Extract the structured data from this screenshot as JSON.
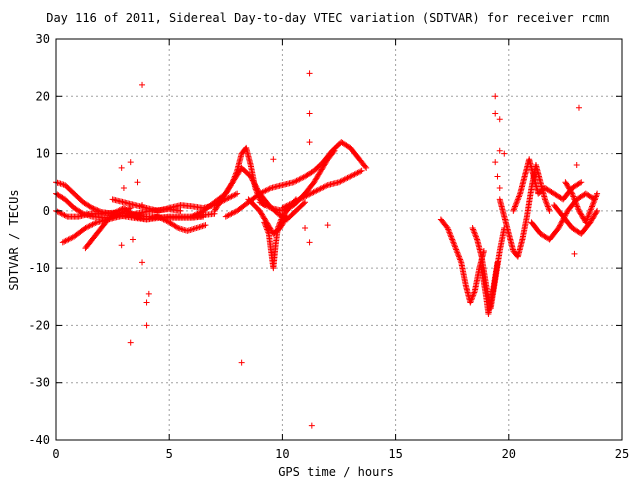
{
  "chart_data": {
    "type": "scatter",
    "title": "Day 116 of 2011, Sidereal Day-to-day VTEC variation (SDTVAR) for receiver rcmn",
    "xlabel": "GPS time / hours",
    "ylabel": "SDTVAR / TECUs",
    "xlim": [
      0,
      25
    ],
    "ylim": [
      -40,
      30
    ],
    "xticks": [
      "0",
      "5",
      "10",
      "15",
      "20",
      "25"
    ],
    "yticks": [
      "30",
      "20",
      "10",
      "0",
      "-10",
      "-20",
      "-30",
      "-40"
    ],
    "grid": true,
    "marker": "plus",
    "color": "#ff0000",
    "series": [
      {
        "tracks": [
          [
            [
              0.0,
              5.0
            ],
            [
              0.4,
              4.5
            ],
            [
              0.8,
              3.0
            ],
            [
              1.2,
              1.5
            ],
            [
              1.6,
              0.5
            ],
            [
              2.0,
              -0.2
            ],
            [
              2.5,
              -0.5
            ],
            [
              3.0,
              0.5
            ],
            [
              3.5,
              -1.0
            ],
            [
              4.0,
              -1.5
            ],
            [
              4.5,
              -1.0
            ]
          ],
          [
            [
              0.0,
              3.0
            ],
            [
              0.4,
              2.0
            ],
            [
              0.8,
              0.5
            ],
            [
              1.2,
              -0.5
            ],
            [
              1.6,
              -1.0
            ],
            [
              2.2,
              -1.2
            ],
            [
              2.8,
              -0.8
            ],
            [
              3.4,
              -1.2
            ],
            [
              4.0,
              -1.5
            ],
            [
              5.0,
              -1.0
            ],
            [
              6.0,
              -1.0
            ],
            [
              7.0,
              -0.5
            ]
          ],
          [
            [
              0.0,
              0.0
            ],
            [
              0.5,
              -1.0
            ],
            [
              1.0,
              -1.0
            ],
            [
              1.5,
              -0.5
            ],
            [
              2.0,
              -0.5
            ],
            [
              2.6,
              -0.3
            ],
            [
              3.2,
              -0.5
            ],
            [
              4.0,
              -1.0
            ],
            [
              5.0,
              -1.2
            ],
            [
              6.0,
              -1.2
            ],
            [
              6.5,
              -1.0
            ]
          ],
          [
            [
              0.3,
              -5.5
            ],
            [
              0.8,
              -4.5
            ],
            [
              1.3,
              -3.0
            ],
            [
              1.8,
              -2.0
            ],
            [
              2.3,
              -1.5
            ],
            [
              2.8,
              -1.0
            ],
            [
              3.5,
              -0.5
            ],
            [
              4.2,
              0.0
            ],
            [
              5.0,
              0.3
            ],
            [
              5.5,
              0.0
            ]
          ],
          [
            [
              1.3,
              -6.5
            ],
            [
              1.8,
              -4.0
            ],
            [
              2.3,
              -1.5
            ],
            [
              2.8,
              -0.5
            ],
            [
              3.3,
              0.5
            ]
          ],
          [
            [
              2.5,
              2.0
            ],
            [
              3.0,
              1.5
            ],
            [
              3.5,
              1.0
            ],
            [
              4.0,
              0.5
            ],
            [
              4.5,
              0.0
            ],
            [
              5.0,
              0.5
            ],
            [
              5.5,
              1.0
            ],
            [
              6.0,
              0.8
            ],
            [
              6.5,
              0.5
            ],
            [
              7.0,
              1.0
            ],
            [
              7.5,
              2.0
            ],
            [
              8.0,
              3.0
            ]
          ],
          [
            [
              4.5,
              -1.0
            ],
            [
              5.0,
              -2.0
            ],
            [
              5.4,
              -3.0
            ],
            [
              5.8,
              -3.5
            ],
            [
              6.2,
              -3.0
            ],
            [
              6.6,
              -2.5
            ]
          ],
          [
            [
              6.0,
              -1.0
            ],
            [
              6.5,
              0.0
            ],
            [
              7.0,
              1.5
            ],
            [
              7.5,
              3.0
            ],
            [
              7.8,
              5.0
            ],
            [
              8.0,
              7.0
            ],
            [
              8.2,
              10.0
            ],
            [
              8.4,
              11.0
            ],
            [
              8.6,
              8.0
            ],
            [
              8.8,
              4.0
            ],
            [
              9.0,
              2.0
            ],
            [
              9.2,
              1.0
            ]
          ],
          [
            [
              7.0,
              0.0
            ],
            [
              7.4,
              2.5
            ],
            [
              7.8,
              5.0
            ],
            [
              8.2,
              7.5
            ],
            [
              8.6,
              6.0
            ],
            [
              9.0,
              3.0
            ],
            [
              9.4,
              1.0
            ],
            [
              9.8,
              -0.5
            ],
            [
              10.2,
              -1.5
            ],
            [
              10.6,
              0.0
            ],
            [
              11.0,
              1.5
            ]
          ],
          [
            [
              7.5,
              -1.0
            ],
            [
              8.0,
              0.0
            ],
            [
              8.5,
              1.5
            ],
            [
              9.0,
              3.0
            ],
            [
              9.5,
              4.0
            ],
            [
              10.0,
              4.5
            ],
            [
              10.5,
              5.0
            ],
            [
              11.0,
              6.0
            ],
            [
              11.4,
              7.0
            ],
            [
              11.8,
              8.5
            ],
            [
              12.2,
              10.5
            ],
            [
              12.6,
              12.0
            ],
            [
              13.0,
              11.0
            ],
            [
              13.4,
              9.0
            ],
            [
              13.7,
              7.5
            ]
          ],
          [
            [
              9.0,
              1.5
            ],
            [
              9.5,
              0.5
            ],
            [
              10.0,
              0.0
            ],
            [
              10.5,
              1.0
            ],
            [
              11.0,
              3.0
            ],
            [
              11.4,
              5.0
            ],
            [
              11.7,
              7.0
            ],
            [
              12.0,
              9.0
            ],
            [
              12.3,
              10.5
            ]
          ],
          [
            [
              10.0,
              0.5
            ],
            [
              10.5,
              1.5
            ],
            [
              11.0,
              2.5
            ],
            [
              11.5,
              3.5
            ],
            [
              12.0,
              4.5
            ],
            [
              12.5,
              5.0
            ],
            [
              13.0,
              6.0
            ],
            [
              13.5,
              7.0
            ]
          ],
          [
            [
              9.2,
              -2.0
            ],
            [
              9.4,
              -4.0
            ],
            [
              9.5,
              -7.0
            ],
            [
              9.6,
              -10.0
            ],
            [
              9.7,
              -6.0
            ],
            [
              9.8,
              -3.0
            ],
            [
              10.0,
              -1.0
            ],
            [
              10.3,
              0.5
            ],
            [
              10.6,
              2.0
            ]
          ],
          [
            [
              8.5,
              2.0
            ],
            [
              9.0,
              0.0
            ],
            [
              9.3,
              -2.0
            ],
            [
              9.6,
              -4.0
            ],
            [
              9.9,
              -3.0
            ],
            [
              10.2,
              -1.0
            ]
          ],
          [
            [
              17.0,
              -1.5
            ],
            [
              17.3,
              -3.0
            ],
            [
              17.6,
              -6.0
            ],
            [
              17.9,
              -9.0
            ],
            [
              18.1,
              -13.0
            ],
            [
              18.3,
              -16.0
            ],
            [
              18.5,
              -14.0
            ],
            [
              18.7,
              -10.0
            ],
            [
              18.9,
              -7.0
            ]
          ],
          [
            [
              18.4,
              -3.0
            ],
            [
              18.6,
              -5.0
            ],
            [
              18.8,
              -8.0
            ],
            [
              19.0,
              -13.0
            ],
            [
              19.2,
              -17.0
            ],
            [
              19.4,
              -12.0
            ],
            [
              19.6,
              -7.0
            ],
            [
              19.8,
              -3.0
            ]
          ],
          [
            [
              18.8,
              -10.0
            ],
            [
              19.0,
              -15.0
            ],
            [
              19.1,
              -18.0
            ],
            [
              19.3,
              -14.0
            ],
            [
              19.5,
              -9.0
            ]
          ],
          [
            [
              19.6,
              2.0
            ],
            [
              19.8,
              -1.0
            ],
            [
              20.0,
              -4.0
            ],
            [
              20.2,
              -7.0
            ],
            [
              20.4,
              -8.0
            ],
            [
              20.6,
              -5.0
            ],
            [
              20.8,
              -1.0
            ],
            [
              21.0,
              4.0
            ],
            [
              21.2,
              8.0
            ],
            [
              21.4,
              5.0
            ],
            [
              21.6,
              2.0
            ],
            [
              21.8,
              0.0
            ]
          ],
          [
            [
              20.2,
              0.0
            ],
            [
              20.5,
              3.0
            ],
            [
              20.7,
              6.0
            ],
            [
              20.9,
              9.0
            ],
            [
              21.1,
              6.0
            ],
            [
              21.3,
              3.0
            ],
            [
              21.6,
              4.0
            ],
            [
              22.0,
              3.0
            ],
            [
              22.4,
              2.0
            ],
            [
              22.8,
              4.0
            ],
            [
              23.2,
              5.0
            ]
          ],
          [
            [
              21.0,
              -2.0
            ],
            [
              21.4,
              -4.0
            ],
            [
              21.8,
              -5.0
            ],
            [
              22.2,
              -3.0
            ],
            [
              22.6,
              0.0
            ],
            [
              23.0,
              2.0
            ],
            [
              23.4,
              3.0
            ],
            [
              23.8,
              2.0
            ]
          ],
          [
            [
              22.0,
              1.0
            ],
            [
              22.4,
              -1.0
            ],
            [
              22.8,
              -3.0
            ],
            [
              23.2,
              -4.0
            ],
            [
              23.6,
              -2.0
            ],
            [
              23.9,
              0.0
            ]
          ],
          [
            [
              22.5,
              5.0
            ],
            [
              22.8,
              3.0
            ],
            [
              23.1,
              0.0
            ],
            [
              23.4,
              -2.0
            ],
            [
              23.7,
              1.0
            ],
            [
              23.9,
              3.0
            ]
          ]
        ],
        "outliers": [
          [
            3.8,
            22.0
          ],
          [
            3.3,
            -23.0
          ],
          [
            4.0,
            -20.0
          ],
          [
            4.0,
            -16.0
          ],
          [
            4.1,
            -14.5
          ],
          [
            3.8,
            -9.0
          ],
          [
            2.9,
            7.5
          ],
          [
            3.0,
            4.0
          ],
          [
            3.6,
            5.0
          ],
          [
            3.3,
            8.5
          ],
          [
            3.8,
            1.0
          ],
          [
            2.9,
            -6.0
          ],
          [
            3.4,
            -5.0
          ],
          [
            8.2,
            -26.5
          ],
          [
            11.2,
            24.0
          ],
          [
            11.2,
            17.0
          ],
          [
            11.2,
            12.0
          ],
          [
            11.2,
            -5.5
          ],
          [
            11.0,
            -3.0
          ],
          [
            12.0,
            -2.5
          ],
          [
            9.6,
            9.0
          ],
          [
            11.3,
            -37.5
          ],
          [
            19.4,
            20.0
          ],
          [
            19.4,
            17.0
          ],
          [
            19.6,
            16.0
          ],
          [
            19.4,
            8.5
          ],
          [
            19.6,
            10.5
          ],
          [
            19.8,
            10.0
          ],
          [
            19.5,
            6.0
          ],
          [
            19.6,
            4.0
          ],
          [
            23.1,
            18.0
          ],
          [
            23.0,
            8.0
          ],
          [
            22.9,
            -7.5
          ]
        ]
      }
    ]
  }
}
